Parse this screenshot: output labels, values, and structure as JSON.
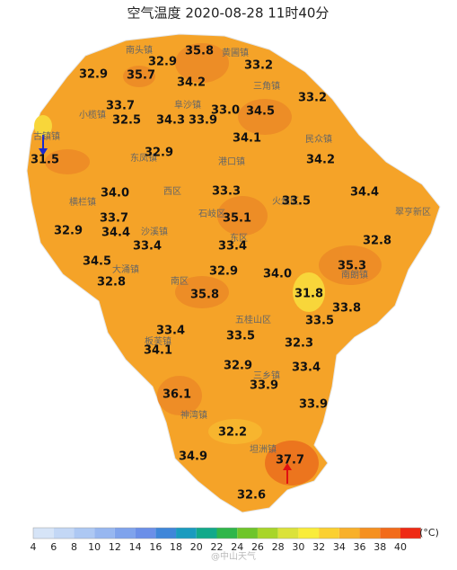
{
  "title": "空气温度 2020-08-28 11时40分",
  "places": [
    "南头镇",
    "黄圃镇",
    "三角镇",
    "阜沙镇",
    "小榄镇",
    "古镇镇",
    "东凤镇",
    "民众镇",
    "港口镇",
    "西区",
    "横栏镇",
    "火炬区",
    "翠亨新区",
    "石岐区",
    "东区",
    "沙溪镇",
    "大涌镇",
    "南朗镇",
    "南区",
    "五桂山区",
    "板芙镇",
    "三乡镇",
    "神湾镇",
    "坦洲镇"
  ],
  "temperatures": [
    "35.8",
    "32.9",
    "32.9",
    "35.7",
    "33.2",
    "34.2",
    "33.2",
    "33.7",
    "34.5",
    "33.0",
    "32.5",
    "34.3",
    "33.9",
    "34.1",
    "32.9",
    "34.2",
    "31.5",
    "34.0",
    "33.3",
    "33.5",
    "34.4",
    "33.7",
    "35.1",
    "34.4",
    "32.9",
    "33.4",
    "33.4",
    "32.8",
    "35.3",
    "34.5",
    "34.0",
    "32.9",
    "32.8",
    "35.8",
    "31.8",
    "33.8",
    "33.5",
    "33.4",
    "33.5",
    "32.3",
    "34.1",
    "32.9",
    "33.4",
    "33.9",
    "36.1",
    "33.9",
    "32.2",
    "34.9",
    "37.7",
    "32.6"
  ],
  "colorbar": {
    "ticks": [
      4,
      6,
      8,
      10,
      12,
      14,
      16,
      18,
      20,
      22,
      24,
      26,
      28,
      30,
      32,
      34,
      36,
      38,
      40
    ],
    "colors": [
      "#d6e4f7",
      "#c3d7f5",
      "#adc8f3",
      "#97b7f0",
      "#7fa3ec",
      "#6b8fe8",
      "#3f86d9",
      "#1a9bbf",
      "#12a98a",
      "#2fb64a",
      "#6ec52a",
      "#a8d52a",
      "#dbe23a",
      "#f9ec3a",
      "#fbd030",
      "#f8b02a",
      "#f5901f",
      "#f26b1a",
      "#ee2a14"
    ],
    "unit": "(°C)"
  },
  "watermark": "@中山天气"
}
